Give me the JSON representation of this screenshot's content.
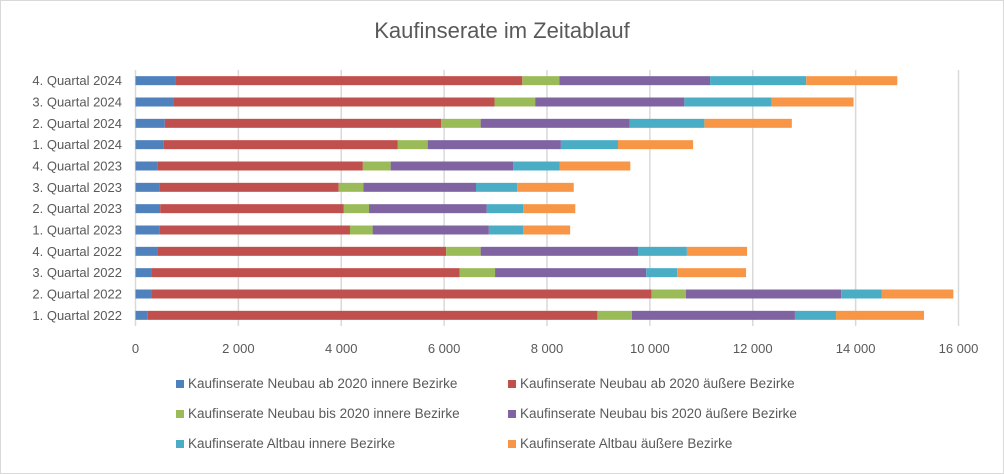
{
  "chart_data": {
    "type": "bar",
    "orientation": "horizontal",
    "stacked": true,
    "title": "Kaufinserate im Zeitablauf",
    "xlabel": "",
    "ylabel": "",
    "xlim": [
      0,
      16000
    ],
    "xticks": [
      0,
      2000,
      4000,
      6000,
      8000,
      10000,
      12000,
      14000,
      16000
    ],
    "xtick_labels": [
      "0",
      "2 000",
      "4 000",
      "6 000",
      "8 000",
      "10 000",
      "12 000",
      "14 000",
      "16 000"
    ],
    "grid": true,
    "legend_position": "bottom",
    "categories": [
      "1. Quartal 2022",
      "2. Quartal 2022",
      "3. Quartal 2022",
      "4. Quartal 2022",
      "1. Quartal 2023",
      "2. Quartal 2023",
      "3. Quartal 2023",
      "4. Quartal 2023",
      "1. Quartal 2024",
      "2. Quartal 2024",
      "3. Quartal 2024",
      "4. Quartal 2024"
    ],
    "series": [
      {
        "name": "Kaufinserate Neubau ab 2020 innere Bezirke",
        "color": "#4f81bd",
        "values": [
          240,
          320,
          320,
          420,
          460,
          480,
          460,
          430,
          540,
          570,
          740,
          770
        ]
      },
      {
        "name": "Kaufinserate Neubau ab 2020 äußere Bezirke",
        "color": "#c0504d",
        "values": [
          8740,
          9710,
          5980,
          5620,
          3710,
          3570,
          3490,
          3990,
          4560,
          5370,
          6240,
          6750
        ]
      },
      {
        "name": "Kaufinserate Neubau bis 2020 innere Bezirke",
        "color": "#9bbb59",
        "values": [
          670,
          670,
          690,
          670,
          440,
          490,
          480,
          540,
          580,
          770,
          790,
          720
        ]
      },
      {
        "name": "Kaufinserate Neubau bis 2020 äußere Bezirke",
        "color": "#8064a2",
        "values": [
          3170,
          3020,
          2940,
          3060,
          2260,
          2290,
          2190,
          2380,
          2590,
          2900,
          2900,
          2930
        ]
      },
      {
        "name": "Kaufinserate Altbau innere Bezirke",
        "color": "#4bacc6",
        "values": [
          800,
          790,
          600,
          950,
          670,
          710,
          800,
          910,
          1110,
          1450,
          1700,
          1870
        ]
      },
      {
        "name": "Kaufinserate Altbau äußere Bezirke",
        "color": "#f79646",
        "values": [
          1710,
          1390,
          1340,
          1170,
          910,
          1010,
          1100,
          1370,
          1460,
          1700,
          1590,
          1770
        ]
      }
    ]
  }
}
